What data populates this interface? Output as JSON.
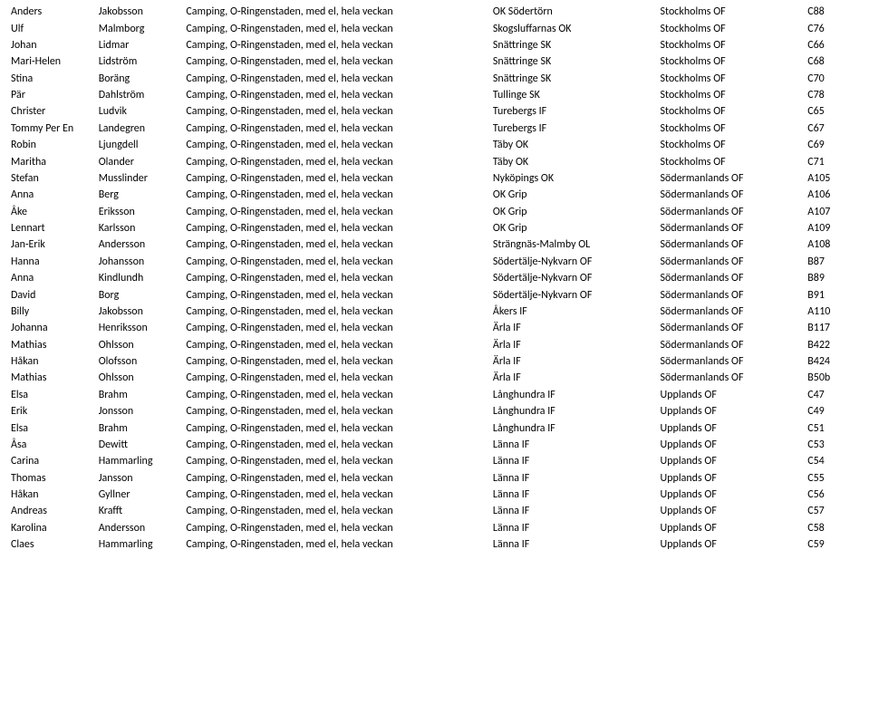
{
  "description": "Camping, O-Ringenstaden, med el, hela veckan",
  "rows": [
    {
      "first": "Anders",
      "last": "Jakobsson",
      "club": "OK Södertörn",
      "district": "Stockholms OF",
      "code": "C88"
    },
    {
      "first": "Ulf",
      "last": "Malmborg",
      "club": "Skogsluffarnas OK",
      "district": "Stockholms OF",
      "code": "C76"
    },
    {
      "first": "Johan",
      "last": "Lidmar",
      "club": "Snättringe SK",
      "district": "Stockholms OF",
      "code": "C66"
    },
    {
      "first": "Mari-Helen",
      "last": "Lidström",
      "club": "Snättringe SK",
      "district": "Stockholms OF",
      "code": "C68"
    },
    {
      "first": "Stina",
      "last": "Boräng",
      "club": "Snättringe SK",
      "district": "Stockholms OF",
      "code": "C70"
    },
    {
      "first": "Pär",
      "last": "Dahlström",
      "club": "Tullinge SK",
      "district": "Stockholms OF",
      "code": "C78"
    },
    {
      "first": "Christer",
      "last": "Ludvik",
      "club": "Turebergs IF",
      "district": "Stockholms OF",
      "code": "C65"
    },
    {
      "first": "Tommy Per En",
      "last": "Landegren",
      "club": "Turebergs IF",
      "district": "Stockholms OF",
      "code": "C67"
    },
    {
      "first": "Robin",
      "last": "Ljungdell",
      "club": "Täby OK",
      "district": "Stockholms OF",
      "code": "C69"
    },
    {
      "first": "Maritha",
      "last": "Olander",
      "club": "Täby OK",
      "district": "Stockholms OF",
      "code": "C71"
    },
    {
      "first": "Stefan",
      "last": "Musslinder",
      "club": "Nyköpings OK",
      "district": "Södermanlands OF",
      "code": "A105"
    },
    {
      "first": "Anna",
      "last": "Berg",
      "club": "OK Grip",
      "district": "Södermanlands OF",
      "code": "A106"
    },
    {
      "first": "Åke",
      "last": "Eriksson",
      "club": "OK Grip",
      "district": "Södermanlands OF",
      "code": "A107"
    },
    {
      "first": "Lennart",
      "last": "Karlsson",
      "club": "OK Grip",
      "district": "Södermanlands OF",
      "code": "A109"
    },
    {
      "first": "Jan-Erik",
      "last": "Andersson",
      "club": "Strängnäs-Malmby OL",
      "district": "Södermanlands OF",
      "code": "A108"
    },
    {
      "first": "Hanna",
      "last": "Johansson",
      "club": "Södertälje-Nykvarn OF",
      "district": "Södermanlands OF",
      "code": "B87"
    },
    {
      "first": "Anna",
      "last": "Kindlundh",
      "club": "Södertälje-Nykvarn OF",
      "district": "Södermanlands OF",
      "code": "B89"
    },
    {
      "first": "David",
      "last": "Borg",
      "club": "Södertälje-Nykvarn OF",
      "district": "Södermanlands OF",
      "code": "B91"
    },
    {
      "first": "Billy",
      "last": "Jakobsson",
      "club": "Åkers IF",
      "district": "Södermanlands OF",
      "code": "A110"
    },
    {
      "first": "Johanna",
      "last": "Henriksson",
      "club": "Ärla IF",
      "district": "Södermanlands OF",
      "code": "B117"
    },
    {
      "first": "Mathias",
      "last": "Ohlsson",
      "club": "Ärla IF",
      "district": "Södermanlands OF",
      "code": "B422"
    },
    {
      "first": "Håkan",
      "last": "Olofsson",
      "club": "Ärla IF",
      "district": "Södermanlands OF",
      "code": "B424"
    },
    {
      "first": "Mathias",
      "last": "Ohlsson",
      "club": "Ärla IF",
      "district": "Södermanlands OF",
      "code": "B50b"
    },
    {
      "first": "Elsa",
      "last": "Brahm",
      "club": "Långhundra IF",
      "district": "Upplands OF",
      "code": "C47"
    },
    {
      "first": "Erik",
      "last": "Jonsson",
      "club": "Långhundra IF",
      "district": "Upplands OF",
      "code": "C49"
    },
    {
      "first": "Elsa",
      "last": "Brahm",
      "club": "Långhundra IF",
      "district": "Upplands OF",
      "code": "C51"
    },
    {
      "first": "Åsa",
      "last": "Dewitt",
      "club": "Länna IF",
      "district": "Upplands OF",
      "code": "C53"
    },
    {
      "first": "Carina",
      "last": "Hammarling",
      "club": "Länna IF",
      "district": "Upplands OF",
      "code": "C54"
    },
    {
      "first": "Thomas",
      "last": "Jansson",
      "club": "Länna IF",
      "district": "Upplands OF",
      "code": "C55"
    },
    {
      "first": "Håkan",
      "last": "Gyllner",
      "club": "Länna IF",
      "district": "Upplands OF",
      "code": "C56"
    },
    {
      "first": "Andreas",
      "last": "Krafft",
      "club": "Länna IF",
      "district": "Upplands OF",
      "code": "C57"
    },
    {
      "first": "Karolina",
      "last": "Andersson",
      "club": "Länna IF",
      "district": "Upplands OF",
      "code": "C58"
    },
    {
      "first": "Claes",
      "last": "Hammarling",
      "club": "Länna IF",
      "district": "Upplands OF",
      "code": "C59"
    }
  ]
}
